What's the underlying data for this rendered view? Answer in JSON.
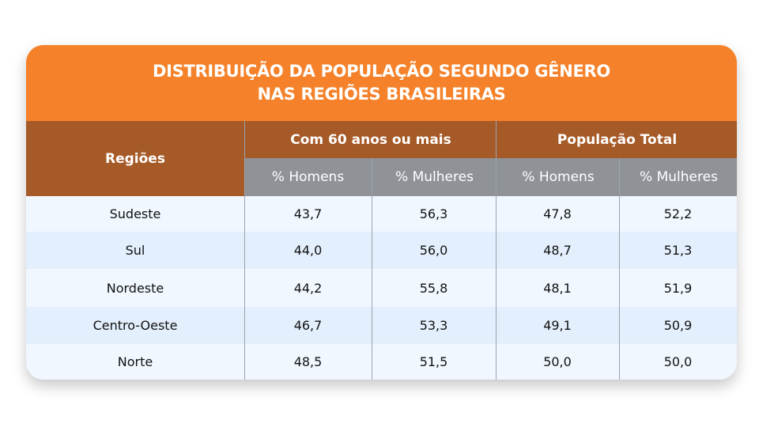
{
  "title_lines": [
    "DISTRIBUIÇÃO DA POPULAÇÃO SEGUNDO GÊNERO",
    "NAS REGIÕES BRASILEIRAS"
  ],
  "colors": {
    "title_bg": "#f5822a",
    "header_bg": "#a65a27",
    "subheader_bg": "#8f9297",
    "row_odd": "#f0f7ff",
    "row_even": "#e3effc"
  },
  "chart_data": {
    "type": "table",
    "title": "DISTRIBUIÇÃO DA POPULAÇÃO SEGUNDO GÊNERO NAS REGIÕES BRASILEIRAS",
    "row_header": "Regiões",
    "column_groups": [
      {
        "label": "Com 60 anos ou mais",
        "columns": [
          "% Homens",
          "% Mulheres"
        ]
      },
      {
        "label": "População Total",
        "columns": [
          "% Homens",
          "% Mulheres"
        ]
      }
    ],
    "rows": [
      {
        "region": "Sudeste",
        "values": [
          "43,7",
          "56,3",
          "47,8",
          "52,2"
        ]
      },
      {
        "region": "Sul",
        "values": [
          "44,0",
          "56,0",
          "48,7",
          "51,3"
        ]
      },
      {
        "region": "Nordeste",
        "values": [
          "44,2",
          "55,8",
          "48,1",
          "51,9"
        ]
      },
      {
        "region": "Centro-Oeste",
        "values": [
          "46,7",
          "53,3",
          "49,1",
          "50,9"
        ]
      },
      {
        "region": "Norte",
        "values": [
          "48,5",
          "51,5",
          "50,0",
          "50,0"
        ]
      }
    ]
  }
}
